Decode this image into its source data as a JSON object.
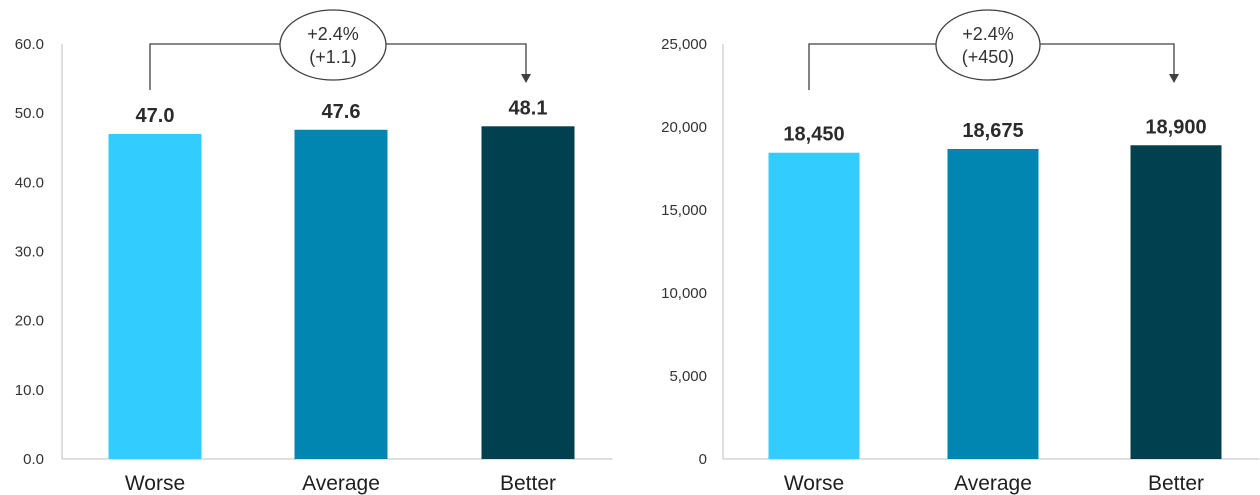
{
  "chart_data": [
    {
      "type": "bar",
      "categories": [
        "Worse",
        "Average",
        "Better"
      ],
      "values": [
        47.0,
        47.6,
        48.1
      ],
      "value_labels": [
        "47.0",
        "47.6",
        "48.1"
      ],
      "ylim": [
        0,
        60
      ],
      "y_ticks": [
        "0.0",
        "10.0",
        "20.0",
        "30.0",
        "40.0",
        "50.0",
        "60.0"
      ],
      "bar_colors": [
        "#33CCFF",
        "#0086B0",
        "#00404F"
      ],
      "grid": false,
      "title": "",
      "xlabel": "",
      "ylabel": "",
      "annotation": {
        "from_category": "Worse",
        "to_category": "Better",
        "line1": "+2.4%",
        "line2": "(+1.1)"
      }
    },
    {
      "type": "bar",
      "categories": [
        "Worse",
        "Average",
        "Better"
      ],
      "values": [
        18450,
        18675,
        18900
      ],
      "value_labels": [
        "18,450",
        "18,675",
        "18,900"
      ],
      "ylim": [
        0,
        25000
      ],
      "y_ticks": [
        "0",
        "5,000",
        "10,000",
        "15,000",
        "20,000",
        "25,000"
      ],
      "bar_colors": [
        "#33CCFF",
        "#0086B0",
        "#00404F"
      ],
      "grid": false,
      "title": "",
      "xlabel": "",
      "ylabel": "",
      "annotation": {
        "from_category": "Worse",
        "to_category": "Better",
        "line1": "+2.4%",
        "line2": "(+450)"
      }
    }
  ]
}
